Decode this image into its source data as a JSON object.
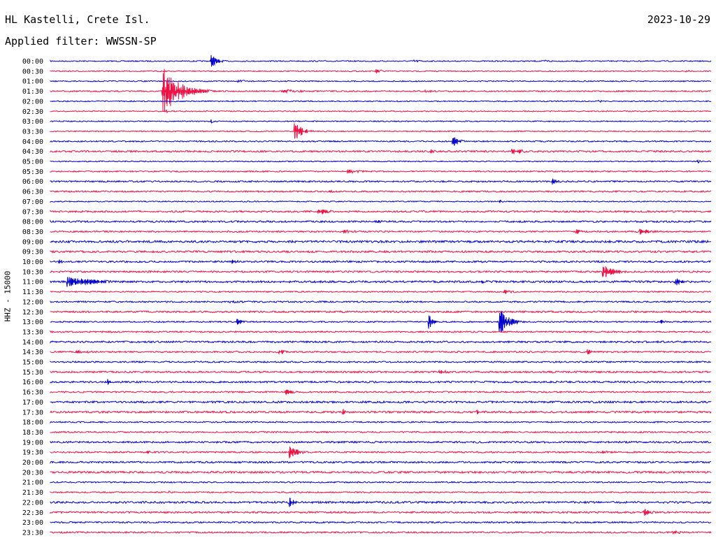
{
  "header": {
    "station": "HL Kastelli, Crete Isl.",
    "date": "2023-10-29",
    "filter_text": "Applied filter: WWSSN-SP"
  },
  "chart_data": {
    "type": "line",
    "title": "HL Kastelli, Crete Isl.",
    "ylabel": "HHZ - 15000",
    "colors": [
      "#0000cc",
      "#ee1144"
    ],
    "row_labels": [
      "00:00",
      "00:30",
      "01:00",
      "01:30",
      "02:00",
      "02:30",
      "03:00",
      "03:30",
      "04:00",
      "04:30",
      "05:00",
      "05:30",
      "06:00",
      "06:30",
      "07:00",
      "07:30",
      "08:00",
      "08:30",
      "09:00",
      "09:30",
      "10:00",
      "10:30",
      "11:00",
      "11:30",
      "12:00",
      "12:30",
      "13:00",
      "13:30",
      "14:00",
      "14:30",
      "15:00",
      "15:30",
      "16:00",
      "16:30",
      "17:00",
      "17:30",
      "18:00",
      "18:30",
      "19:00",
      "19:30",
      "20:00",
      "20:30",
      "21:00",
      "21:30",
      "22:00",
      "22:30",
      "23:00",
      "23:30"
    ],
    "minutes_per_row": 30,
    "noise_level": [
      1,
      1,
      1,
      1.2,
      1,
      1,
      1,
      1,
      1.2,
      1.6,
      1,
      1.2,
      1.4,
      1.4,
      1,
      1.6,
      1.6,
      1.4,
      2,
      1.8,
      1.6,
      1.6,
      1.8,
      1.2,
      1.4,
      1.6,
      1.2,
      1.4,
      1.6,
      1.4,
      1.4,
      1.6,
      1.6,
      1.4,
      1.8,
      1.8,
      1.2,
      1.4,
      1.6,
      1.4,
      1.6,
      1.8,
      1.2,
      1.2,
      1.8,
      1.6,
      1.4,
      1.4
    ],
    "events": [
      {
        "row": 0,
        "minute": 7.3,
        "amplitude": 10,
        "duration_min": 0.6
      },
      {
        "row": 0,
        "minute": 16.5,
        "amplitude": 2,
        "duration_min": 1.5
      },
      {
        "row": 0,
        "minute": 22.5,
        "amplitude": 2,
        "duration_min": 1
      },
      {
        "row": 1,
        "minute": 14.8,
        "amplitude": 3,
        "duration_min": 1
      },
      {
        "row": 1,
        "minute": 28.9,
        "amplitude": 2,
        "duration_min": 0.5
      },
      {
        "row": 2,
        "minute": 8.5,
        "amplitude": 2,
        "duration_min": 2
      },
      {
        "row": 3,
        "minute": 5.1,
        "amplitude": 42,
        "duration_min": 1.5
      },
      {
        "row": 3,
        "minute": 10.5,
        "amplitude": 3,
        "duration_min": 3
      },
      {
        "row": 3,
        "minute": 17,
        "amplitude": 2,
        "duration_min": 2
      },
      {
        "row": 4,
        "minute": 24.9,
        "amplitude": 2,
        "duration_min": 0.6
      },
      {
        "row": 5,
        "minute": 5.2,
        "amplitude": 3,
        "duration_min": 0.6
      },
      {
        "row": 6,
        "minute": 7.3,
        "amplitude": 3,
        "duration_min": 0.3
      },
      {
        "row": 7,
        "minute": 11.1,
        "amplitude": 20,
        "duration_min": 0.6
      },
      {
        "row": 8,
        "minute": 18.3,
        "amplitude": 8,
        "duration_min": 0.6
      },
      {
        "row": 9,
        "minute": 17.3,
        "amplitude": 3,
        "duration_min": 1
      },
      {
        "row": 9,
        "minute": 21,
        "amplitude": 5,
        "duration_min": 1.2
      },
      {
        "row": 10,
        "minute": 29.4,
        "amplitude": 3,
        "duration_min": 0.3
      },
      {
        "row": 11,
        "minute": 13.5,
        "amplitude": 3,
        "duration_min": 2
      },
      {
        "row": 12,
        "minute": 22.8,
        "amplitude": 6,
        "duration_min": 0.6
      },
      {
        "row": 13,
        "minute": 12.7,
        "amplitude": 3,
        "duration_min": 0.3
      },
      {
        "row": 14,
        "minute": 20.4,
        "amplitude": 3,
        "duration_min": 0.4
      },
      {
        "row": 15,
        "minute": 12.2,
        "amplitude": 4,
        "duration_min": 1.8
      },
      {
        "row": 16,
        "minute": 14.9,
        "amplitude": 4,
        "duration_min": 0.3
      },
      {
        "row": 17,
        "minute": 13.3,
        "amplitude": 3,
        "duration_min": 1.8
      },
      {
        "row": 17,
        "minute": 23.9,
        "amplitude": 4,
        "duration_min": 0.5
      },
      {
        "row": 17,
        "minute": 26.8,
        "amplitude": 4,
        "duration_min": 1.6
      },
      {
        "row": 20,
        "minute": 0.4,
        "amplitude": 4,
        "duration_min": 0.6
      },
      {
        "row": 20,
        "minute": 8.3,
        "amplitude": 3,
        "duration_min": 0.8
      },
      {
        "row": 21,
        "minute": 25.1,
        "amplitude": 10,
        "duration_min": 1.2
      },
      {
        "row": 22,
        "minute": 0.8,
        "amplitude": 8,
        "duration_min": 3
      },
      {
        "row": 22,
        "minute": 19.5,
        "amplitude": 3,
        "duration_min": 1.5
      },
      {
        "row": 22,
        "minute": 28.4,
        "amplitude": 6,
        "duration_min": 0.8
      },
      {
        "row": 23,
        "minute": 20.6,
        "amplitude": 3,
        "duration_min": 1.2
      },
      {
        "row": 24,
        "minute": 8.2,
        "amplitude": 2,
        "duration_min": 3
      },
      {
        "row": 26,
        "minute": 8.5,
        "amplitude": 6,
        "duration_min": 0.4
      },
      {
        "row": 26,
        "minute": 17.2,
        "amplitude": 11,
        "duration_min": 0.4
      },
      {
        "row": 26,
        "minute": 20.4,
        "amplitude": 22,
        "duration_min": 0.8
      },
      {
        "row": 26,
        "minute": 27.7,
        "amplitude": 3,
        "duration_min": 0.8
      },
      {
        "row": 29,
        "minute": 1.2,
        "amplitude": 3,
        "duration_min": 2
      },
      {
        "row": 29,
        "minute": 10.4,
        "amplitude": 4,
        "duration_min": 0.8
      },
      {
        "row": 29,
        "minute": 24.4,
        "amplitude": 6,
        "duration_min": 0.3
      },
      {
        "row": 31,
        "minute": 17.7,
        "amplitude": 3,
        "duration_min": 1.5
      },
      {
        "row": 32,
        "minute": 2.6,
        "amplitude": 5,
        "duration_min": 0.3
      },
      {
        "row": 33,
        "minute": 10.7,
        "amplitude": 4,
        "duration_min": 1
      },
      {
        "row": 35,
        "minute": 13.3,
        "amplitude": 4,
        "duration_min": 0.3
      },
      {
        "row": 35,
        "minute": 19.4,
        "amplitude": 3,
        "duration_min": 0.3
      },
      {
        "row": 36,
        "minute": 10.1,
        "amplitude": 3,
        "duration_min": 0.4
      },
      {
        "row": 39,
        "minute": 4.4,
        "amplitude": 4,
        "duration_min": 0.3
      },
      {
        "row": 39,
        "minute": 10.9,
        "amplitude": 9,
        "duration_min": 0.8
      },
      {
        "row": 39,
        "minute": 25.1,
        "amplitude": 3,
        "duration_min": 0.8
      },
      {
        "row": 40,
        "minute": 11.9,
        "amplitude": 2,
        "duration_min": 0.6
      },
      {
        "row": 43,
        "minute": 5.4,
        "amplitude": 2,
        "duration_min": 0.6
      },
      {
        "row": 44,
        "minute": 10.9,
        "amplitude": 10,
        "duration_min": 0.4
      },
      {
        "row": 45,
        "minute": 27,
        "amplitude": 5,
        "duration_min": 0.8
      },
      {
        "row": 47,
        "minute": 28.3,
        "amplitude": 3,
        "duration_min": 1
      }
    ]
  }
}
